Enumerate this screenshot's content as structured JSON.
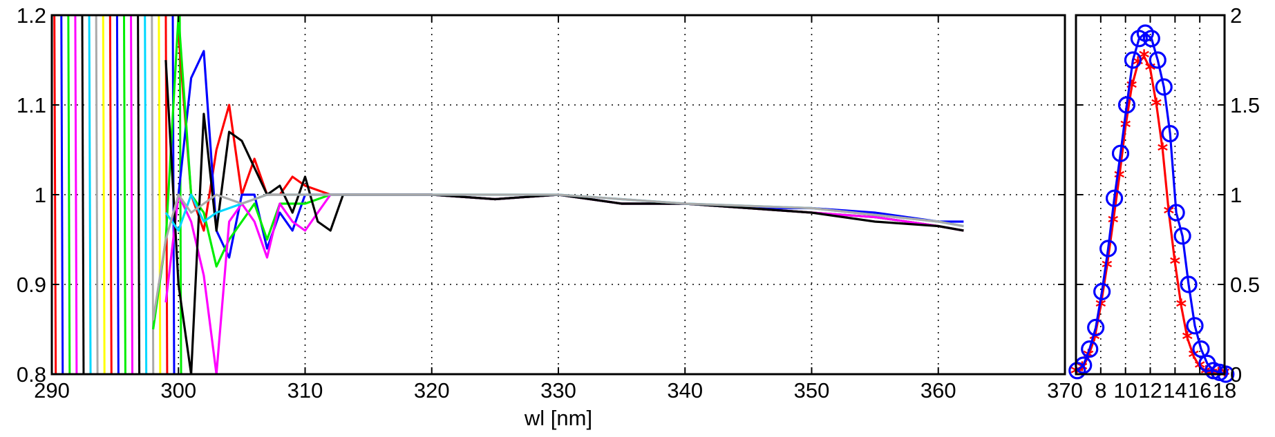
{
  "chart_data": [
    {
      "type": "line",
      "xlabel": "wl [nm]",
      "ylabel": "",
      "title": "",
      "xlim": [
        290,
        370
      ],
      "ylim": [
        0.8,
        1.2
      ],
      "x_ticks": [
        290,
        300,
        310,
        320,
        330,
        340,
        350,
        360,
        370
      ],
      "y_ticks": [
        0.8,
        0.9,
        1,
        1.1,
        1.2
      ],
      "x_tick_labels": [
        "290",
        "300",
        "310",
        "320",
        "330",
        "340",
        "350",
        "360",
        "370"
      ],
      "y_tick_labels": [
        "0.8",
        "0.9",
        "1",
        "1.1",
        "1.2"
      ],
      "grid": true,
      "series_colors": [
        "#ff0000",
        "#0000ff",
        "#00ee00",
        "#ff00ff",
        "#000000",
        "#00d8ff",
        "#aaaaaa",
        "#ffff00"
      ],
      "series": [
        {
          "color": "#ff0000",
          "x": [
            300,
            301,
            302,
            303,
            304,
            305,
            306,
            307,
            308,
            309,
            310,
            312,
            315,
            320,
            325,
            330,
            335,
            340,
            345,
            350,
            355,
            360,
            362
          ],
          "y": [
            1.18,
            1.0,
            0.96,
            1.05,
            1.1,
            1.0,
            1.04,
            1.0,
            1.0,
            1.02,
            1.01,
            1.0,
            1.0,
            1.0,
            0.995,
            1.0,
            0.99,
            0.99,
            0.985,
            0.98,
            0.975,
            0.965,
            0.96
          ]
        },
        {
          "color": "#0000ff",
          "x": [
            300,
            301,
            302,
            303,
            304,
            305,
            306,
            307,
            308,
            309,
            310,
            312,
            315,
            320,
            325,
            330,
            335,
            340,
            345,
            350,
            355,
            360,
            362
          ],
          "y": [
            1.0,
            1.13,
            1.16,
            0.96,
            0.93,
            1.0,
            1.0,
            0.94,
            0.98,
            0.96,
            1.0,
            1.0,
            1.0,
            1.0,
            0.995,
            1.0,
            0.99,
            0.99,
            0.985,
            0.985,
            0.98,
            0.97,
            0.97
          ]
        },
        {
          "color": "#00ee00",
          "x": [
            298,
            299,
            300,
            301,
            302,
            303,
            304,
            305,
            306,
            307,
            308,
            310,
            312,
            315,
            320,
            325,
            330,
            335,
            340,
            345,
            350,
            355,
            360,
            362
          ],
          "y": [
            0.85,
            0.95,
            1.2,
            1.0,
            0.98,
            0.92,
            0.95,
            0.97,
            0.99,
            0.95,
            0.99,
            0.99,
            1.0,
            1.0,
            1.0,
            0.995,
            1.0,
            0.99,
            0.99,
            0.985,
            0.98,
            0.975,
            0.965,
            0.96
          ]
        },
        {
          "color": "#ff00ff",
          "x": [
            299,
            300,
            301,
            302,
            303,
            304,
            305,
            306,
            307,
            308,
            309,
            310,
            312,
            315,
            320,
            325,
            330,
            335,
            340,
            345,
            350,
            355,
            360,
            362
          ],
          "y": [
            0.88,
            1.0,
            0.97,
            0.91,
            0.8,
            0.97,
            0.99,
            0.97,
            0.93,
            0.99,
            0.97,
            0.96,
            1.0,
            1.0,
            1.0,
            0.995,
            1.0,
            0.99,
            0.99,
            0.985,
            0.98,
            0.975,
            0.965,
            0.96
          ]
        },
        {
          "color": "#000000",
          "x": [
            299,
            300,
            301,
            302,
            303,
            304,
            305,
            306,
            307,
            308,
            309,
            310,
            311,
            312,
            313,
            315,
            320,
            325,
            330,
            335,
            340,
            345,
            350,
            355,
            360,
            362
          ],
          "y": [
            1.15,
            0.9,
            0.8,
            1.09,
            0.96,
            1.07,
            1.06,
            1.03,
            1.0,
            1.01,
            0.98,
            1.02,
            0.97,
            0.96,
            1.0,
            1.0,
            1.0,
            0.995,
            1.0,
            0.99,
            0.99,
            0.985,
            0.98,
            0.97,
            0.965,
            0.96
          ]
        },
        {
          "color": "#00d8ff",
          "x": [
            299,
            300,
            301,
            302,
            303,
            305,
            307,
            310,
            315,
            320,
            330,
            340,
            350,
            360,
            362
          ],
          "y": [
            0.98,
            0.96,
            1.0,
            0.97,
            0.98,
            0.99,
            1.0,
            1.0,
            1.0,
            1.0,
            1.0,
            0.99,
            0.985,
            0.97,
            0.965
          ]
        },
        {
          "color": "#aaaaaa",
          "x": [
            298,
            299,
            300,
            301,
            302,
            303,
            305,
            307,
            310,
            315,
            320,
            330,
            340,
            350,
            360,
            362
          ],
          "y": [
            0.86,
            0.95,
            1.0,
            0.98,
            0.99,
            1.0,
            0.99,
            1.0,
            1.0,
            1.0,
            1.0,
            1.0,
            0.99,
            0.985,
            0.97,
            0.965
          ]
        }
      ],
      "oscillation_region": {
        "x_start": 290,
        "x_end": 302
      }
    },
    {
      "type": "line",
      "xlabel": "",
      "ylabel": "",
      "xlim": [
        6,
        18
      ],
      "ylim": [
        0,
        2
      ],
      "x_ticks": [
        8,
        10,
        12,
        14,
        16,
        18
      ],
      "y_ticks": [
        0,
        0.5,
        1,
        1.5,
        2
      ],
      "x_tick_labels": [
        "8",
        "10",
        "12",
        "14",
        "16",
        "18"
      ],
      "y_tick_labels": [
        "0",
        "0.5",
        "1",
        "1.5",
        "2"
      ],
      "grid": true,
      "series": [
        {
          "color": "#ff0000",
          "line": "solid",
          "marker": "star",
          "x": [
            6,
            6.5,
            7,
            7.5,
            8,
            8.5,
            9,
            9.5,
            10,
            10.5,
            11,
            11.5,
            12,
            12.5,
            13,
            13.5,
            14,
            14.5,
            15,
            15.5,
            16,
            16.5,
            17,
            17.5,
            18
          ],
          "y": [
            0.01,
            0.03,
            0.1,
            0.2,
            0.38,
            0.6,
            0.85,
            1.1,
            1.38,
            1.6,
            1.73,
            1.77,
            1.7,
            1.5,
            1.25,
            0.9,
            0.62,
            0.38,
            0.2,
            0.1,
            0.04,
            0.01,
            0.0,
            0.0,
            0.0
          ]
        },
        {
          "color": "#0000ff",
          "line": "solid",
          "marker": "circle",
          "x": [
            6.1,
            6.6,
            7.1,
            7.6,
            8.1,
            8.6,
            9.1,
            9.6,
            10.1,
            10.6,
            11.1,
            11.6,
            12.1,
            12.6,
            13.1,
            13.6,
            14.1,
            14.6,
            15.1,
            15.6,
            16.1,
            16.6,
            17.1,
            17.6,
            18.1
          ],
          "y": [
            0.02,
            0.05,
            0.14,
            0.26,
            0.46,
            0.7,
            0.98,
            1.23,
            1.5,
            1.75,
            1.87,
            1.9,
            1.87,
            1.75,
            1.6,
            1.34,
            0.9,
            0.77,
            0.5,
            0.27,
            0.14,
            0.06,
            0.02,
            0.01,
            0.0
          ]
        }
      ]
    }
  ]
}
